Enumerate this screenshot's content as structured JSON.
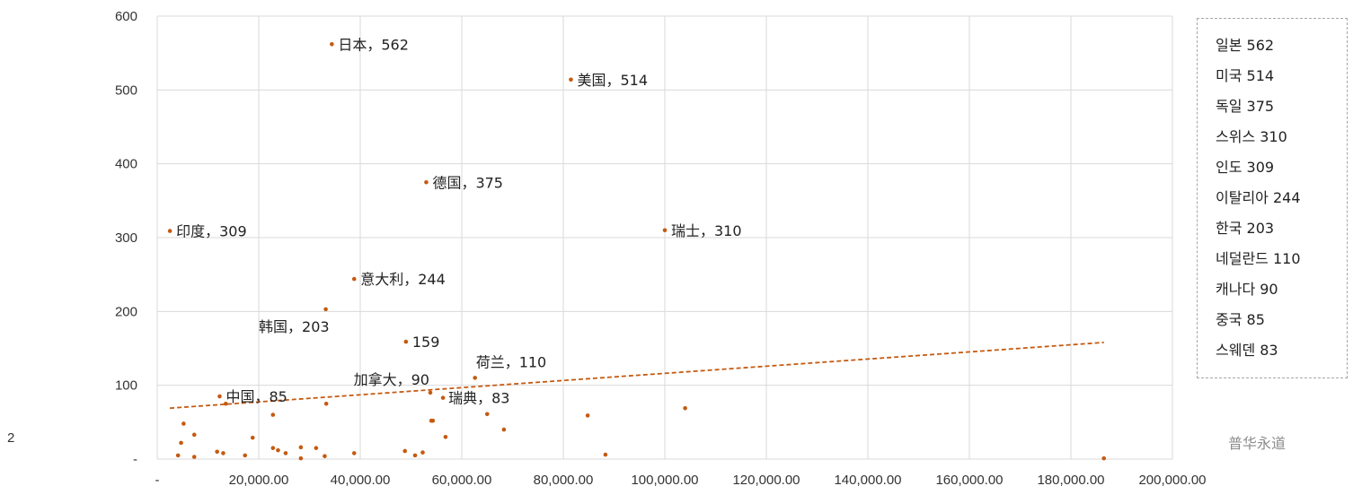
{
  "chart_data": {
    "type": "scatter",
    "xlim": [
      0,
      200000
    ],
    "ylim": [
      0,
      600
    ],
    "x_ticks": [
      {
        "value": 0,
        "label": "-"
      },
      {
        "value": 20000,
        "label": "20,000.00"
      },
      {
        "value": 40000,
        "label": "40,000.00"
      },
      {
        "value": 60000,
        "label": "60,000.00"
      },
      {
        "value": 80000,
        "label": "80,000.00"
      },
      {
        "value": 100000,
        "label": "100,000.00"
      },
      {
        "value": 120000,
        "label": "120,000.00"
      },
      {
        "value": 140000,
        "label": "140,000.00"
      },
      {
        "value": 160000,
        "label": "160,000.00"
      },
      {
        "value": 180000,
        "label": "180,000.00"
      },
      {
        "value": 200000,
        "label": "200,000.00"
      }
    ],
    "y_ticks": [
      {
        "value": 0,
        "label": "-"
      },
      {
        "value": 100,
        "label": "100"
      },
      {
        "value": 200,
        "label": "200"
      },
      {
        "value": 300,
        "label": "300"
      },
      {
        "value": 400,
        "label": "400"
      },
      {
        "value": 500,
        "label": "500"
      },
      {
        "value": 600,
        "label": "600"
      }
    ],
    "grid": true,
    "color": "#c55a11",
    "points": [
      {
        "x": 34400,
        "y": 562,
        "label": "日本，562",
        "label_pos": "right"
      },
      {
        "x": 81500,
        "y": 514,
        "label": "美国，514",
        "label_pos": "right"
      },
      {
        "x": 53000,
        "y": 375,
        "label": "德国，375",
        "label_pos": "right"
      },
      {
        "x": 2500,
        "y": 309,
        "label": "印度，309",
        "label_pos": "right"
      },
      {
        "x": 100000,
        "y": 310,
        "label": "瑞士，310",
        "label_pos": "right"
      },
      {
        "x": 38800,
        "y": 244,
        "label": "意大利，244",
        "label_pos": "right"
      },
      {
        "x": 33200,
        "y": 203,
        "label": "韩国，203",
        "label_pos": "below-left"
      },
      {
        "x": 49000,
        "y": 159,
        "label": "159",
        "label_pos": "right"
      },
      {
        "x": 62600,
        "y": 110,
        "label": "荷兰，110",
        "label_pos": "above"
      },
      {
        "x": 53800,
        "y": 90,
        "label": "加拿大，90",
        "label_pos": "above-left"
      },
      {
        "x": 12300,
        "y": 85,
        "label": "中国，85",
        "label_pos": "right"
      },
      {
        "x": 56300,
        "y": 83,
        "label": "瑞典，83",
        "label_pos": "below-right"
      },
      {
        "x": 13500,
        "y": 75
      },
      {
        "x": 5200,
        "y": 48
      },
      {
        "x": 7300,
        "y": 33
      },
      {
        "x": 4700,
        "y": 22
      },
      {
        "x": 4100,
        "y": 5
      },
      {
        "x": 7300,
        "y": 3
      },
      {
        "x": 11800,
        "y": 10
      },
      {
        "x": 13000,
        "y": 8
      },
      {
        "x": 17300,
        "y": 5
      },
      {
        "x": 18800,
        "y": 29
      },
      {
        "x": 22800,
        "y": 60
      },
      {
        "x": 22800,
        "y": 15
      },
      {
        "x": 23800,
        "y": 12
      },
      {
        "x": 25300,
        "y": 8
      },
      {
        "x": 28300,
        "y": 16
      },
      {
        "x": 28300,
        "y": 1
      },
      {
        "x": 31300,
        "y": 15
      },
      {
        "x": 33000,
        "y": 4
      },
      {
        "x": 33300,
        "y": 75
      },
      {
        "x": 38800,
        "y": 8
      },
      {
        "x": 48800,
        "y": 11
      },
      {
        "x": 50800,
        "y": 5
      },
      {
        "x": 52300,
        "y": 9
      },
      {
        "x": 54000,
        "y": 52
      },
      {
        "x": 54300,
        "y": 52
      },
      {
        "x": 56800,
        "y": 30
      },
      {
        "x": 65000,
        "y": 61
      },
      {
        "x": 68300,
        "y": 40
      },
      {
        "x": 84800,
        "y": 59
      },
      {
        "x": 88300,
        "y": 6
      },
      {
        "x": 104000,
        "y": 69
      },
      {
        "x": 186500,
        "y": 1
      }
    ],
    "trendline": {
      "x": [
        2500,
        186500
      ],
      "y": [
        69,
        158
      ],
      "style": "dashed"
    }
  },
  "stray_label": "2",
  "legend": [
    "일본 562",
    "미국 514",
    "독일 375",
    "스위스 310",
    "인도 309",
    "이탈리아 244",
    "한국 203",
    "네덜란드 110",
    "캐나다 90",
    "중국 85",
    "스웨덴 83"
  ],
  "watermark": "普华永道"
}
